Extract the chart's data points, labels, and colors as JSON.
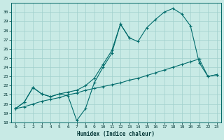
{
  "bg_color": "#c8eae5",
  "line_color": "#006b6b",
  "grid_color": "#a0d0cc",
  "xlim": [
    -0.5,
    23.5
  ],
  "ylim": [
    18,
    31
  ],
  "yticks": [
    18,
    19,
    20,
    21,
    22,
    23,
    24,
    25,
    26,
    27,
    28,
    29,
    30
  ],
  "xtick_labels": [
    "0",
    "1",
    "2",
    "3",
    "4",
    "5",
    "6",
    "7",
    "8",
    "9",
    "10",
    "11",
    "12",
    "13",
    "14",
    "15",
    "16",
    "17",
    "18",
    "19",
    "20",
    "21",
    "22",
    "23"
  ],
  "xlabel": "Humidex (Indice chaleur)",
  "series_wiggly_x": [
    0,
    1,
    2,
    3,
    4,
    5,
    6,
    7,
    8,
    9,
    10,
    11,
    12,
    13
  ],
  "series_wiggly_y": [
    19.5,
    20.2,
    21.8,
    21.1,
    20.8,
    21.1,
    20.9,
    18.2,
    19.5,
    22.3,
    24.0,
    25.5,
    28.7,
    27.2
  ],
  "series_upper_x": [
    0,
    1,
    2,
    3,
    4,
    5,
    6,
    7,
    8,
    9,
    10,
    11,
    12,
    13,
    14,
    15,
    16,
    17,
    18,
    19,
    20,
    21,
    22,
    23
  ],
  "series_upper_y": [
    19.5,
    20.2,
    21.8,
    21.1,
    20.8,
    21.1,
    21.3,
    21.5,
    22.0,
    22.8,
    24.3,
    25.8,
    28.7,
    27.2,
    26.8,
    28.3,
    29.2,
    30.0,
    30.4,
    29.8,
    28.5,
    24.5,
    23.0,
    23.2
  ],
  "series_lower_x": [
    0,
    1,
    2,
    3,
    4,
    5,
    6,
    7,
    8,
    9,
    10,
    11,
    12,
    13,
    14,
    15,
    16,
    17,
    18,
    19,
    20,
    21,
    22,
    23
  ],
  "series_lower_y": [
    19.5,
    19.7,
    20.0,
    20.3,
    20.5,
    20.7,
    21.0,
    21.2,
    21.5,
    21.7,
    21.9,
    22.1,
    22.3,
    22.6,
    22.8,
    23.1,
    23.4,
    23.7,
    24.0,
    24.3,
    24.6,
    24.9,
    23.0,
    23.2
  ]
}
